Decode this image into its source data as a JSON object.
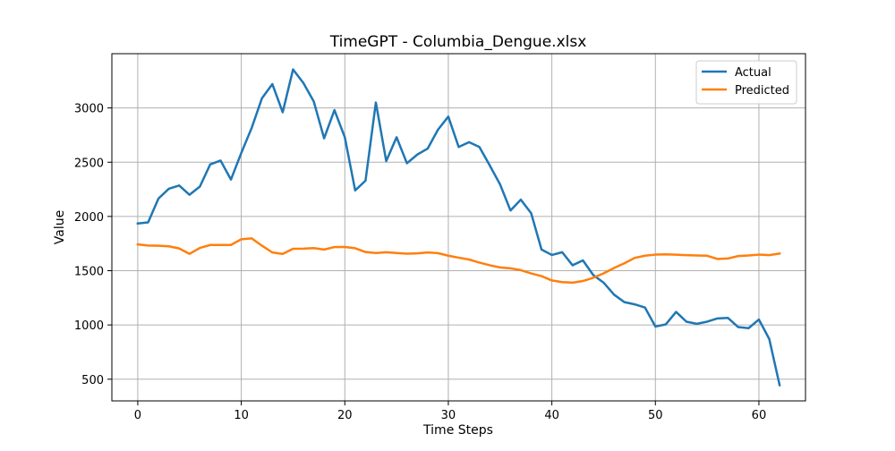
{
  "chart_data": {
    "type": "line",
    "title": "TimeGPT - Columbia_Dengue.xlsx",
    "xlabel": "Time Steps",
    "ylabel": "Value",
    "xlim": [
      -2.5,
      64.5
    ],
    "ylim": [
      300,
      3500
    ],
    "xticks": [
      0,
      10,
      20,
      30,
      40,
      50,
      60
    ],
    "yticks": [
      500,
      1000,
      1500,
      2000,
      2500,
      3000
    ],
    "grid": true,
    "legend_position": "top-right",
    "series": [
      {
        "name": "Actual",
        "color": "#1f77b4",
        "values": [
          1935,
          1945,
          2165,
          2255,
          2285,
          2200,
          2275,
          2480,
          2515,
          2340,
          2585,
          2815,
          3090,
          3220,
          2960,
          3355,
          3230,
          3060,
          2720,
          2980,
          2730,
          2240,
          2330,
          3050,
          2510,
          2730,
          2490,
          2570,
          2625,
          2800,
          2920,
          2640,
          2685,
          2640,
          2470,
          2295,
          2055,
          2155,
          2030,
          1695,
          1645,
          1670,
          1550,
          1595,
          1460,
          1390,
          1280,
          1210,
          1190,
          1160,
          985,
          1005,
          1120,
          1030,
          1010,
          1030,
          1060,
          1065,
          980,
          970,
          1050,
          870,
          445
        ]
      },
      {
        "name": "Predicted",
        "color": "#ff7f0e",
        "values": [
          1742,
          1732,
          1730,
          1725,
          1705,
          1655,
          1710,
          1737,
          1737,
          1737,
          1790,
          1798,
          1730,
          1668,
          1655,
          1702,
          1703,
          1708,
          1695,
          1718,
          1719,
          1707,
          1672,
          1663,
          1670,
          1663,
          1657,
          1660,
          1668,
          1662,
          1638,
          1620,
          1603,
          1575,
          1550,
          1530,
          1522,
          1505,
          1475,
          1450,
          1410,
          1395,
          1390,
          1405,
          1435,
          1475,
          1525,
          1568,
          1618,
          1638,
          1648,
          1650,
          1647,
          1643,
          1640,
          1638,
          1608,
          1612,
          1635,
          1640,
          1648,
          1643,
          1658
        ]
      }
    ]
  }
}
